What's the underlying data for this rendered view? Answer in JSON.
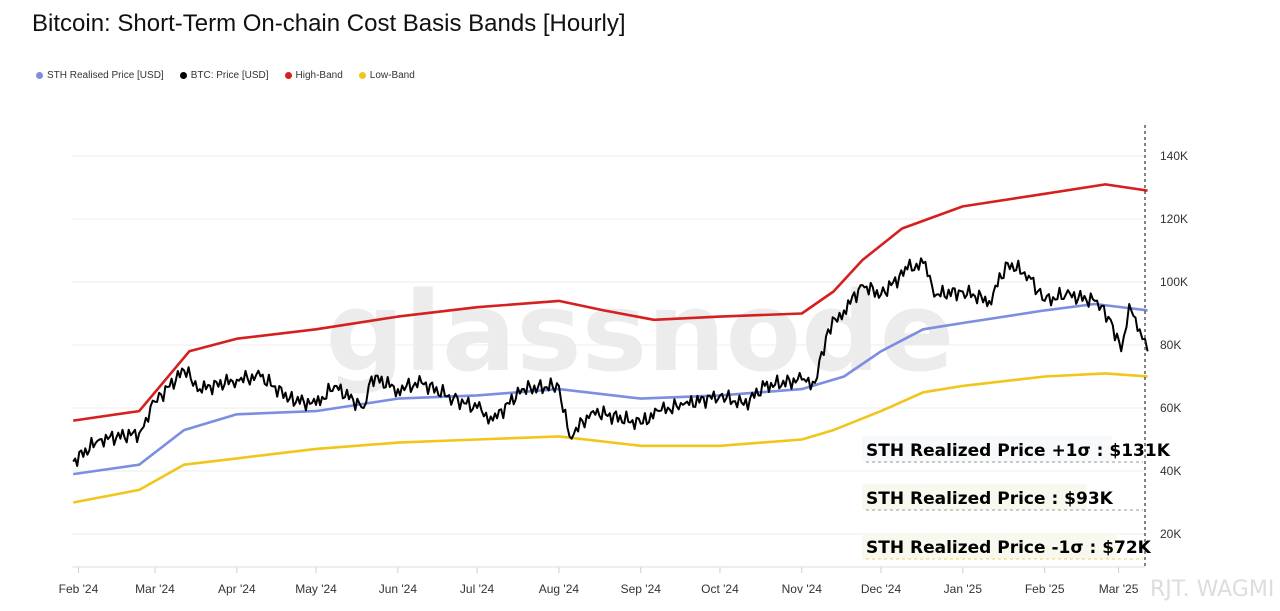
{
  "title": "Bitcoin: Short-Term On-chain Cost Basis Bands [Hourly]",
  "watermark": "glassnode",
  "credit": "RJT. WAGMI",
  "legend": [
    {
      "label": "STH Realised Price [USD]",
      "color": "#7b8ee0"
    },
    {
      "label": "BTC: Price [USD]",
      "color": "#000000"
    },
    {
      "label": "High-Band",
      "color": "#d61f1f"
    },
    {
      "label": "Low-Band",
      "color": "#f2c51c"
    }
  ],
  "annotations": [
    {
      "text": "STH Realized Price +1σ : $131K",
      "color": "#d0175e"
    },
    {
      "text": "STH Realized Price  : $93K",
      "color": "#5b8fd9"
    },
    {
      "text": "STH Realized Price -1σ : $72K",
      "color": "#f0d45a"
    }
  ],
  "chart_data": {
    "type": "line",
    "title": "Bitcoin: Short-Term On-chain Cost Basis Bands [Hourly]",
    "x_ticks": [
      "Feb '24",
      "Mar '24",
      "Apr '24",
      "May '24",
      "Jun '24",
      "Jul '24",
      "Aug '24",
      "Sep '24",
      "Oct '24",
      "Nov '24",
      "Dec '24",
      "Jan '25",
      "Feb '25",
      "Mar '25"
    ],
    "y_ticks": [
      "20K",
      "40K",
      "60K",
      "80K",
      "100K",
      "120K",
      "140K"
    ],
    "ylim": [
      10000,
      150000
    ],
    "y_axis_position": "right",
    "grid": true,
    "legend_position": "top-left",
    "series": [
      {
        "name": "BTC: Price [USD]",
        "color": "#000000",
        "points": [
          [
            "2024-01-30",
            43000
          ],
          [
            "2024-02-09",
            50000
          ],
          [
            "2024-02-24",
            52000
          ],
          [
            "2024-03-01",
            62000
          ],
          [
            "2024-03-12",
            72000
          ],
          [
            "2024-03-18",
            66000
          ],
          [
            "2024-04-01",
            69000
          ],
          [
            "2024-04-10",
            70000
          ],
          [
            "2024-04-21",
            63000
          ],
          [
            "2024-05-01",
            61000
          ],
          [
            "2024-05-08",
            67000
          ],
          [
            "2024-05-19",
            60000
          ],
          [
            "2024-05-22",
            70000
          ],
          [
            "2024-06-01",
            66000
          ],
          [
            "2024-06-10",
            68000
          ],
          [
            "2024-06-22",
            63000
          ],
          [
            "2024-07-01",
            60000
          ],
          [
            "2024-07-07",
            56000
          ],
          [
            "2024-07-18",
            66000
          ],
          [
            "2024-08-01",
            67000
          ],
          [
            "2024-08-05",
            51000
          ],
          [
            "2024-08-14",
            59000
          ],
          [
            "2024-09-01",
            55000
          ],
          [
            "2024-09-08",
            59000
          ],
          [
            "2024-09-17",
            61000
          ],
          [
            "2024-10-01",
            64000
          ],
          [
            "2024-10-10",
            61000
          ],
          [
            "2024-10-18",
            67000
          ],
          [
            "2024-11-01",
            69000
          ],
          [
            "2024-11-06",
            68000
          ],
          [
            "2024-11-11",
            85000
          ],
          [
            "2024-11-17",
            91000
          ],
          [
            "2024-11-24",
            99000
          ],
          [
            "2024-12-01",
            96000
          ],
          [
            "2024-12-11",
            104000
          ],
          [
            "2024-12-17",
            106000
          ],
          [
            "2024-12-22",
            96000
          ],
          [
            "2025-01-01",
            97000
          ],
          [
            "2025-01-11",
            94000
          ],
          [
            "2025-01-18",
            106000
          ],
          [
            "2025-01-26",
            102000
          ],
          [
            "2025-02-01",
            94000
          ],
          [
            "2025-02-09",
            96000
          ],
          [
            "2025-02-20",
            94000
          ],
          [
            "2025-02-26",
            88000
          ],
          [
            "2025-03-02",
            78000
          ],
          [
            "2025-03-05",
            93000
          ],
          [
            "2025-03-09",
            85000
          ],
          [
            "2025-03-12",
            78000
          ]
        ]
      },
      {
        "name": "STH Realised Price [USD]",
        "color": "#7b8ee0",
        "points": [
          [
            "2024-01-30",
            39000
          ],
          [
            "2024-02-24",
            42000
          ],
          [
            "2024-03-12",
            53000
          ],
          [
            "2024-04-01",
            58000
          ],
          [
            "2024-05-01",
            59000
          ],
          [
            "2024-06-01",
            63000
          ],
          [
            "2024-07-01",
            64000
          ],
          [
            "2024-08-01",
            66000
          ],
          [
            "2024-09-01",
            63000
          ],
          [
            "2024-10-01",
            64000
          ],
          [
            "2024-11-01",
            66000
          ],
          [
            "2024-11-17",
            70000
          ],
          [
            "2024-12-01",
            78000
          ],
          [
            "2024-12-17",
            85000
          ],
          [
            "2025-01-01",
            87000
          ],
          [
            "2025-02-01",
            91000
          ],
          [
            "2025-02-20",
            93000
          ],
          [
            "2025-03-12",
            91000
          ]
        ]
      },
      {
        "name": "High-Band",
        "color": "#d61f1f",
        "points": [
          [
            "2024-01-30",
            56000
          ],
          [
            "2024-02-24",
            59000
          ],
          [
            "2024-03-05",
            69000
          ],
          [
            "2024-03-14",
            78000
          ],
          [
            "2024-04-01",
            82000
          ],
          [
            "2024-05-01",
            85000
          ],
          [
            "2024-06-01",
            89000
          ],
          [
            "2024-07-01",
            92000
          ],
          [
            "2024-08-01",
            94000
          ],
          [
            "2024-08-18",
            91000
          ],
          [
            "2024-09-06",
            88000
          ],
          [
            "2024-10-01",
            89000
          ],
          [
            "2024-11-01",
            90000
          ],
          [
            "2024-11-13",
            97000
          ],
          [
            "2024-11-24",
            107000
          ],
          [
            "2024-12-09",
            117000
          ],
          [
            "2025-01-01",
            124000
          ],
          [
            "2025-02-01",
            128000
          ],
          [
            "2025-02-24",
            131000
          ],
          [
            "2025-03-12",
            129000
          ]
        ]
      },
      {
        "name": "Low-Band",
        "color": "#f2c51c",
        "points": [
          [
            "2024-01-30",
            30000
          ],
          [
            "2024-02-24",
            34000
          ],
          [
            "2024-03-12",
            42000
          ],
          [
            "2024-04-01",
            44000
          ],
          [
            "2024-05-01",
            47000
          ],
          [
            "2024-06-01",
            49000
          ],
          [
            "2024-07-01",
            50000
          ],
          [
            "2024-08-01",
            51000
          ],
          [
            "2024-09-01",
            48000
          ],
          [
            "2024-10-01",
            48000
          ],
          [
            "2024-11-01",
            50000
          ],
          [
            "2024-11-13",
            53000
          ],
          [
            "2024-12-01",
            59000
          ],
          [
            "2024-12-17",
            65000
          ],
          [
            "2025-01-01",
            67000
          ],
          [
            "2025-02-01",
            70000
          ],
          [
            "2025-02-24",
            71000
          ],
          [
            "2025-03-12",
            70000
          ]
        ]
      }
    ]
  }
}
